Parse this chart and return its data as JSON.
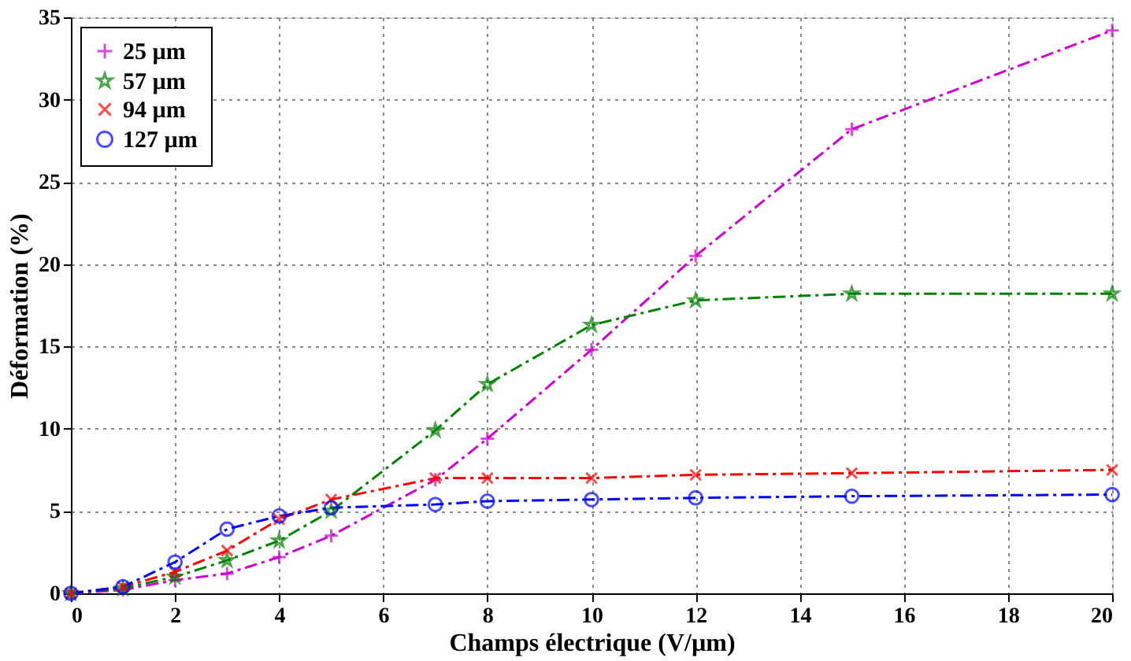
{
  "chart_data": {
    "type": "line",
    "xlabel": "Champs électrique (V/µm)",
    "ylabel": "Déformation (%)",
    "x": [
      0,
      1,
      2,
      3,
      4,
      5,
      7,
      8,
      10,
      12,
      15,
      20
    ],
    "xlim": [
      0,
      20
    ],
    "xticks": [
      0,
      2,
      4,
      6,
      8,
      10,
      12,
      14,
      16,
      18,
      20
    ],
    "ylim": [
      0,
      35
    ],
    "yticks": [
      0,
      5,
      10,
      15,
      20,
      25,
      30,
      35
    ],
    "grid": true,
    "legend": "top left",
    "line_style": "dashed",
    "series": [
      {
        "name": "25 µm",
        "color": "#cc00cc",
        "marker": "cross",
        "values": [
          0,
          0.2,
          0.8,
          1.2,
          2.2,
          3.5,
          6.9,
          9.4,
          14.8,
          20.5,
          28.2,
          34.2
        ]
      },
      {
        "name": "57 µm",
        "color": "#008000",
        "marker": "star",
        "values": [
          0,
          0.3,
          1.0,
          2.0,
          3.2,
          5.0,
          9.9,
          12.7,
          16.3,
          17.8,
          18.2,
          18.2
        ]
      },
      {
        "name": "94 µm",
        "color": "#ff0000",
        "marker": "x",
        "values": [
          0,
          0.4,
          1.3,
          2.6,
          4.5,
          5.7,
          7.0,
          7.0,
          7.0,
          7.2,
          7.3,
          7.5
        ]
      },
      {
        "name": "127 µm",
        "color": "#0000ff",
        "marker": "circle",
        "values": [
          0,
          0.4,
          1.9,
          3.9,
          4.7,
          5.2,
          5.4,
          5.6,
          5.7,
          5.8,
          5.9,
          6.0
        ]
      }
    ]
  }
}
